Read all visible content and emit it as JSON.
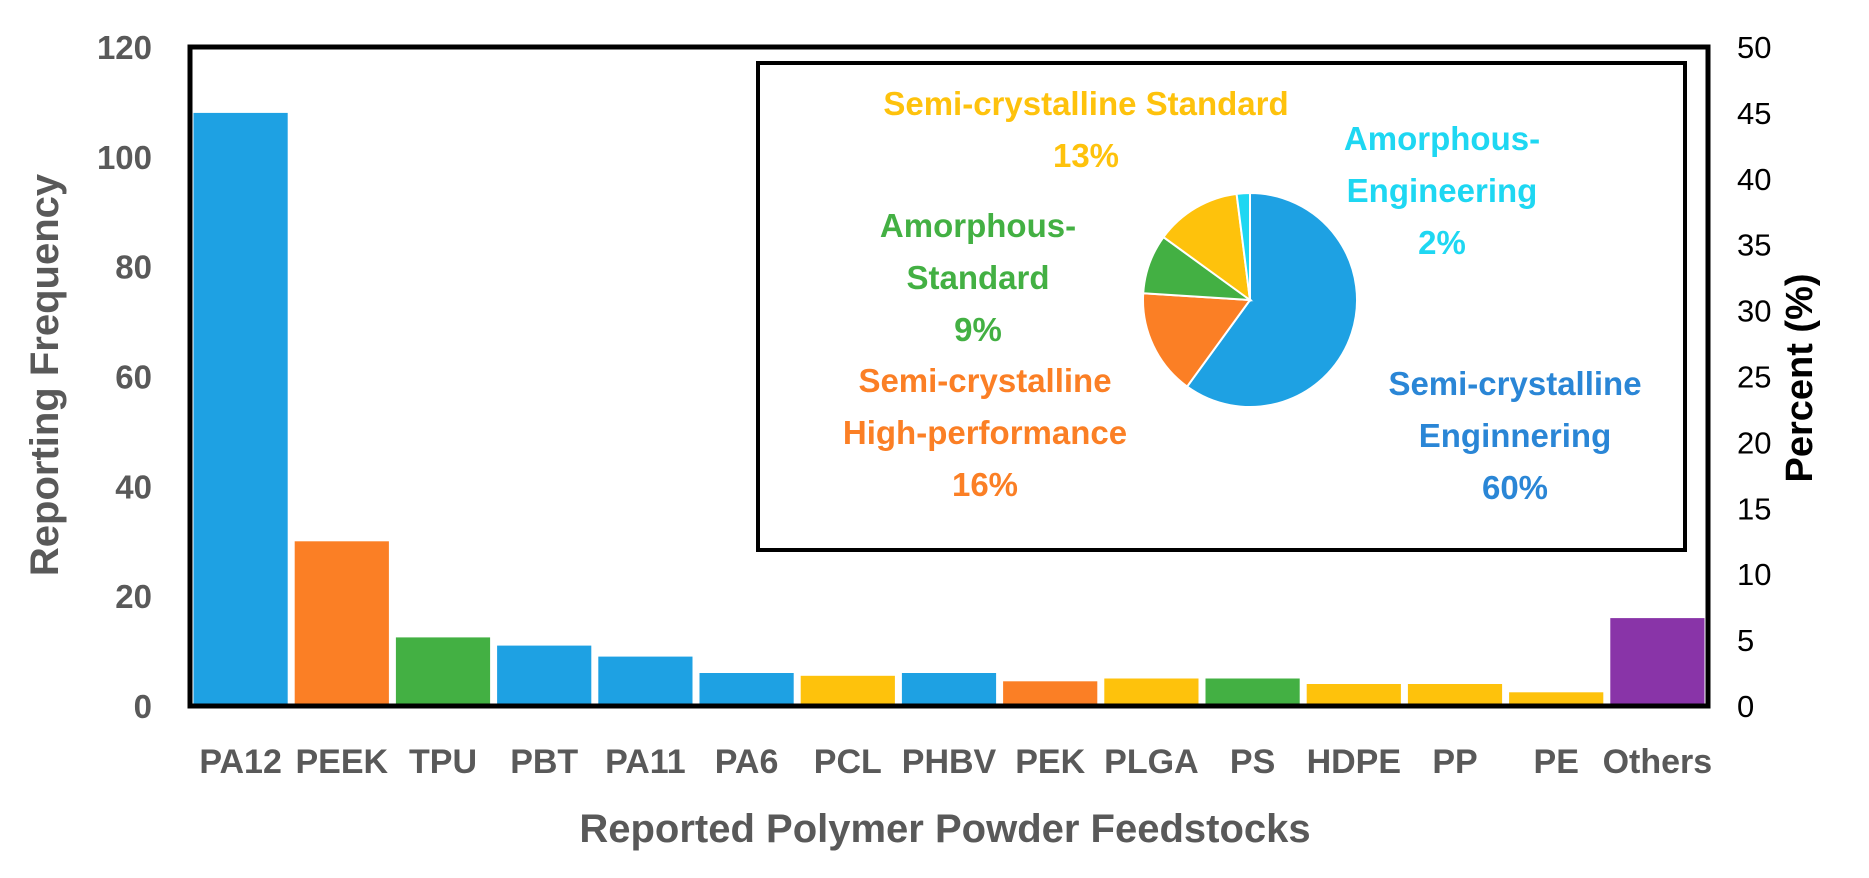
{
  "chart_data": [
    {
      "type": "bar",
      "categories": [
        "PA12",
        "PEEK",
        "TPU",
        "PBT",
        "PA11",
        "PA6",
        "PCL",
        "PHBV",
        "PEK",
        "PLGA",
        "PS",
        "HDPE",
        "PP",
        "PE",
        "Others"
      ],
      "values": [
        108,
        30,
        12.5,
        11,
        9,
        6,
        5.5,
        6,
        4.5,
        5,
        5,
        4,
        4,
        2.5,
        16
      ],
      "bar_colors": [
        "#1ea1e3",
        "#fb7f25",
        "#43b043",
        "#1ea1e3",
        "#1ea1e3",
        "#1ea1e3",
        "#fec20c",
        "#1ea1e3",
        "#fb7f25",
        "#fec20c",
        "#43b043",
        "#fec20c",
        "#fec20c",
        "#fec20c",
        "#8934a8"
      ],
      "xlabel": "Reported Polymer Powder Feedstocks",
      "ylabel": "Reporting Frequency",
      "ylim": [
        0,
        120
      ],
      "yticks": [
        "0",
        "20",
        "40",
        "60",
        "80",
        "100",
        "120"
      ],
      "y2label": "Percent (%)",
      "y2lim": [
        0,
        50
      ],
      "y2ticks": [
        "0",
        "5",
        "10",
        "15",
        "20",
        "25",
        "30",
        "35",
        "40",
        "45",
        "50"
      ],
      "grid": false
    },
    {
      "type": "pie",
      "slices": [
        {
          "label_lines": [
            "Semi-crystalline",
            "Enginnering",
            "60%"
          ],
          "value": 60,
          "color": "#1ea1e3",
          "text_color": "#2a86d6"
        },
        {
          "label_lines": [
            "Semi-crystalline",
            "High-performance",
            "16%"
          ],
          "value": 16,
          "color": "#fb7f25",
          "text_color": "#fb7f25"
        },
        {
          "label_lines": [
            "Amorphous-",
            "Standard",
            "9%"
          ],
          "value": 9,
          "color": "#43b043",
          "text_color": "#43b043"
        },
        {
          "label_lines": [
            "Semi-crystalline Standard",
            "13%"
          ],
          "value": 13,
          "color": "#fec20c",
          "text_color": "#fec20c"
        },
        {
          "label_lines": [
            "Amorphous-",
            "Engineering",
            "2%"
          ],
          "value": 2,
          "color": "#1ed7f2",
          "text_color": "#1ed7f2"
        }
      ]
    }
  ]
}
